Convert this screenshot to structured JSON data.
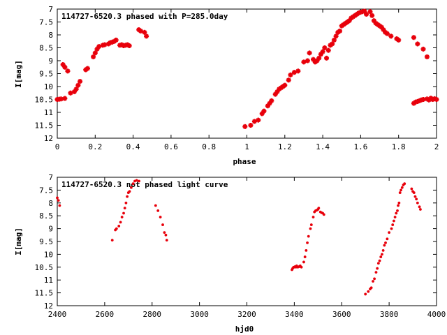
{
  "colors": {
    "points": "#e8000b",
    "axes": "#000000",
    "background": "#ffffff"
  },
  "chart_data": [
    {
      "type": "scatter",
      "title": "114727-6520.3 phased with P=285.0day",
      "xlabel": "phase",
      "ylabel": "I[mag]",
      "xlim": [
        0,
        2
      ],
      "ylim": [
        12,
        7
      ],
      "y_inverted": true,
      "grid": false,
      "marker": "cross",
      "x_ticks": [
        "0",
        "0.2",
        "0.4",
        "0.6",
        "0.8",
        "1",
        "1.2",
        "1.4",
        "1.6",
        "1.8",
        "2"
      ],
      "y_ticks": [
        "7",
        "7.5",
        "8",
        "8.5",
        "9",
        "9.5",
        "10",
        "10.5",
        "11",
        "11.5",
        "12"
      ],
      "points": [
        [
          0.0,
          10.5
        ],
        [
          0.01,
          10.49
        ],
        [
          0.02,
          10.48
        ],
        [
          0.04,
          10.46
        ],
        [
          0.03,
          9.15
        ],
        [
          0.04,
          9.25
        ],
        [
          0.055,
          9.4
        ],
        [
          0.07,
          10.25
        ],
        [
          0.09,
          10.2
        ],
        [
          0.1,
          10.1
        ],
        [
          0.11,
          9.95
        ],
        [
          0.12,
          9.8
        ],
        [
          0.15,
          9.35
        ],
        [
          0.16,
          9.3
        ],
        [
          0.19,
          8.85
        ],
        [
          0.2,
          8.7
        ],
        [
          0.21,
          8.55
        ],
        [
          0.22,
          8.45
        ],
        [
          0.24,
          8.4
        ],
        [
          0.25,
          8.38
        ],
        [
          0.27,
          8.35
        ],
        [
          0.28,
          8.3
        ],
        [
          0.29,
          8.28
        ],
        [
          0.3,
          8.25
        ],
        [
          0.31,
          8.2
        ],
        [
          0.33,
          8.4
        ],
        [
          0.34,
          8.38
        ],
        [
          0.35,
          8.42
        ],
        [
          0.36,
          8.4
        ],
        [
          0.37,
          8.38
        ],
        [
          0.38,
          8.42
        ],
        [
          0.43,
          7.8
        ],
        [
          0.44,
          7.85
        ],
        [
          0.46,
          7.9
        ],
        [
          0.47,
          8.05
        ],
        [
          0.99,
          11.55
        ],
        [
          1.02,
          11.5
        ],
        [
          1.04,
          11.35
        ],
        [
          1.06,
          11.3
        ],
        [
          1.08,
          11.05
        ],
        [
          1.09,
          10.95
        ],
        [
          1.11,
          10.75
        ],
        [
          1.12,
          10.65
        ],
        [
          1.13,
          10.55
        ],
        [
          1.15,
          10.3
        ],
        [
          1.16,
          10.2
        ],
        [
          1.17,
          10.1
        ],
        [
          1.18,
          10.05
        ],
        [
          1.19,
          10.0
        ],
        [
          1.2,
          9.95
        ],
        [
          1.22,
          9.75
        ],
        [
          1.23,
          9.55
        ],
        [
          1.25,
          9.45
        ],
        [
          1.27,
          9.4
        ],
        [
          1.3,
          9.05
        ],
        [
          1.32,
          9.0
        ],
        [
          1.33,
          8.7
        ],
        [
          1.35,
          8.95
        ],
        [
          1.36,
          9.05
        ],
        [
          1.37,
          9.0
        ],
        [
          1.38,
          8.9
        ],
        [
          1.39,
          8.75
        ],
        [
          1.4,
          8.65
        ],
        [
          1.41,
          8.5
        ],
        [
          1.42,
          8.9
        ],
        [
          1.43,
          8.6
        ],
        [
          1.44,
          8.4
        ],
        [
          1.45,
          8.35
        ],
        [
          1.46,
          8.2
        ],
        [
          1.47,
          8.05
        ],
        [
          1.48,
          7.9
        ],
        [
          1.49,
          7.85
        ],
        [
          1.5,
          7.65
        ],
        [
          1.51,
          7.6
        ],
        [
          1.52,
          7.55
        ],
        [
          1.53,
          7.5
        ],
        [
          1.54,
          7.45
        ],
        [
          1.55,
          7.35
        ],
        [
          1.56,
          7.3
        ],
        [
          1.57,
          7.25
        ],
        [
          1.58,
          7.2
        ],
        [
          1.59,
          7.15
        ],
        [
          1.6,
          7.12
        ],
        [
          1.61,
          7.1
        ],
        [
          1.62,
          7.08
        ],
        [
          1.63,
          7.2
        ],
        [
          1.65,
          7.1
        ],
        [
          1.66,
          7.25
        ],
        [
          1.67,
          7.45
        ],
        [
          1.68,
          7.55
        ],
        [
          1.69,
          7.6
        ],
        [
          1.7,
          7.65
        ],
        [
          1.71,
          7.7
        ],
        [
          1.72,
          7.8
        ],
        [
          1.73,
          7.9
        ],
        [
          1.74,
          7.95
        ],
        [
          1.76,
          8.05
        ],
        [
          1.79,
          8.15
        ],
        [
          1.8,
          8.2
        ],
        [
          1.88,
          8.1
        ],
        [
          1.9,
          8.35
        ],
        [
          1.93,
          8.55
        ],
        [
          1.95,
          8.85
        ],
        [
          1.88,
          10.65
        ],
        [
          1.89,
          10.6
        ],
        [
          1.9,
          10.58
        ],
        [
          1.91,
          10.55
        ],
        [
          1.92,
          10.52
        ],
        [
          1.93,
          10.5
        ],
        [
          1.95,
          10.48
        ],
        [
          1.96,
          10.52
        ],
        [
          1.97,
          10.45
        ],
        [
          1.98,
          10.5
        ],
        [
          1.99,
          10.47
        ],
        [
          2.0,
          10.5
        ]
      ]
    },
    {
      "type": "scatter",
      "title": "114727-6520.3 not phased light curve",
      "xlabel": "hjd0",
      "ylabel": "I[mag]",
      "xlim": [
        2400,
        4000
      ],
      "ylim": [
        12,
        7
      ],
      "y_inverted": true,
      "grid": false,
      "marker": "dot",
      "x_ticks": [
        "2400",
        "2600",
        "2800",
        "3000",
        "3200",
        "3400",
        "3600",
        "3800",
        "4000"
      ],
      "y_ticks": [
        "7",
        "7.5",
        "8",
        "8.5",
        "9",
        "9.5",
        "10",
        "10.5",
        "11",
        "11.5",
        "12"
      ],
      "points": [
        [
          2400,
          7.8
        ],
        [
          2405,
          7.9
        ],
        [
          2410,
          8.1
        ],
        [
          2632,
          9.45
        ],
        [
          2645,
          9.05
        ],
        [
          2650,
          9.0
        ],
        [
          2660,
          8.9
        ],
        [
          2667,
          8.75
        ],
        [
          2673,
          8.55
        ],
        [
          2680,
          8.4
        ],
        [
          2685,
          8.2
        ],
        [
          2690,
          8.0
        ],
        [
          2695,
          7.75
        ],
        [
          2700,
          7.6
        ],
        [
          2705,
          7.55
        ],
        [
          2712,
          7.4
        ],
        [
          2720,
          7.25
        ],
        [
          2727,
          7.15
        ],
        [
          2735,
          7.12
        ],
        [
          2745,
          7.15
        ],
        [
          2815,
          8.1
        ],
        [
          2825,
          8.3
        ],
        [
          2835,
          8.55
        ],
        [
          2845,
          8.85
        ],
        [
          2852,
          9.15
        ],
        [
          2858,
          9.25
        ],
        [
          2862,
          9.45
        ],
        [
          3390,
          10.6
        ],
        [
          3393,
          10.55
        ],
        [
          3397,
          10.5
        ],
        [
          3400,
          10.5
        ],
        [
          3403,
          10.48
        ],
        [
          3407,
          10.5
        ],
        [
          3410,
          10.45
        ],
        [
          3415,
          10.5
        ],
        [
          3420,
          10.48
        ],
        [
          3425,
          10.45
        ],
        [
          3430,
          10.5
        ],
        [
          3440,
          10.3
        ],
        [
          3445,
          10.1
        ],
        [
          3450,
          9.85
        ],
        [
          3455,
          9.55
        ],
        [
          3460,
          9.3
        ],
        [
          3468,
          9.0
        ],
        [
          3472,
          8.85
        ],
        [
          3480,
          8.55
        ],
        [
          3485,
          8.35
        ],
        [
          3490,
          8.3
        ],
        [
          3495,
          8.28
        ],
        [
          3500,
          8.25
        ],
        [
          3503,
          8.2
        ],
        [
          3510,
          8.35
        ],
        [
          3515,
          8.38
        ],
        [
          3520,
          8.4
        ],
        [
          3525,
          8.45
        ],
        [
          3700,
          11.55
        ],
        [
          3712,
          11.45
        ],
        [
          3720,
          11.35
        ],
        [
          3725,
          11.3
        ],
        [
          3732,
          11.05
        ],
        [
          3738,
          10.95
        ],
        [
          3745,
          10.7
        ],
        [
          3750,
          10.55
        ],
        [
          3755,
          10.35
        ],
        [
          3760,
          10.25
        ],
        [
          3765,
          10.1
        ],
        [
          3770,
          10.0
        ],
        [
          3775,
          9.85
        ],
        [
          3780,
          9.65
        ],
        [
          3785,
          9.55
        ],
        [
          3792,
          9.4
        ],
        [
          3800,
          9.15
        ],
        [
          3810,
          9.0
        ],
        [
          3815,
          8.85
        ],
        [
          3820,
          8.7
        ],
        [
          3825,
          8.55
        ],
        [
          3830,
          8.4
        ],
        [
          3835,
          8.3
        ],
        [
          3838,
          8.1
        ],
        [
          3842,
          8.0
        ],
        [
          3846,
          7.6
        ],
        [
          3850,
          7.5
        ],
        [
          3855,
          7.4
        ],
        [
          3860,
          7.3
        ],
        [
          3865,
          7.25
        ],
        [
          3895,
          7.45
        ],
        [
          3900,
          7.55
        ],
        [
          3905,
          7.6
        ],
        [
          3910,
          7.75
        ],
        [
          3915,
          7.85
        ],
        [
          3920,
          8.0
        ],
        [
          3928,
          8.15
        ],
        [
          3932,
          8.25
        ]
      ]
    }
  ]
}
